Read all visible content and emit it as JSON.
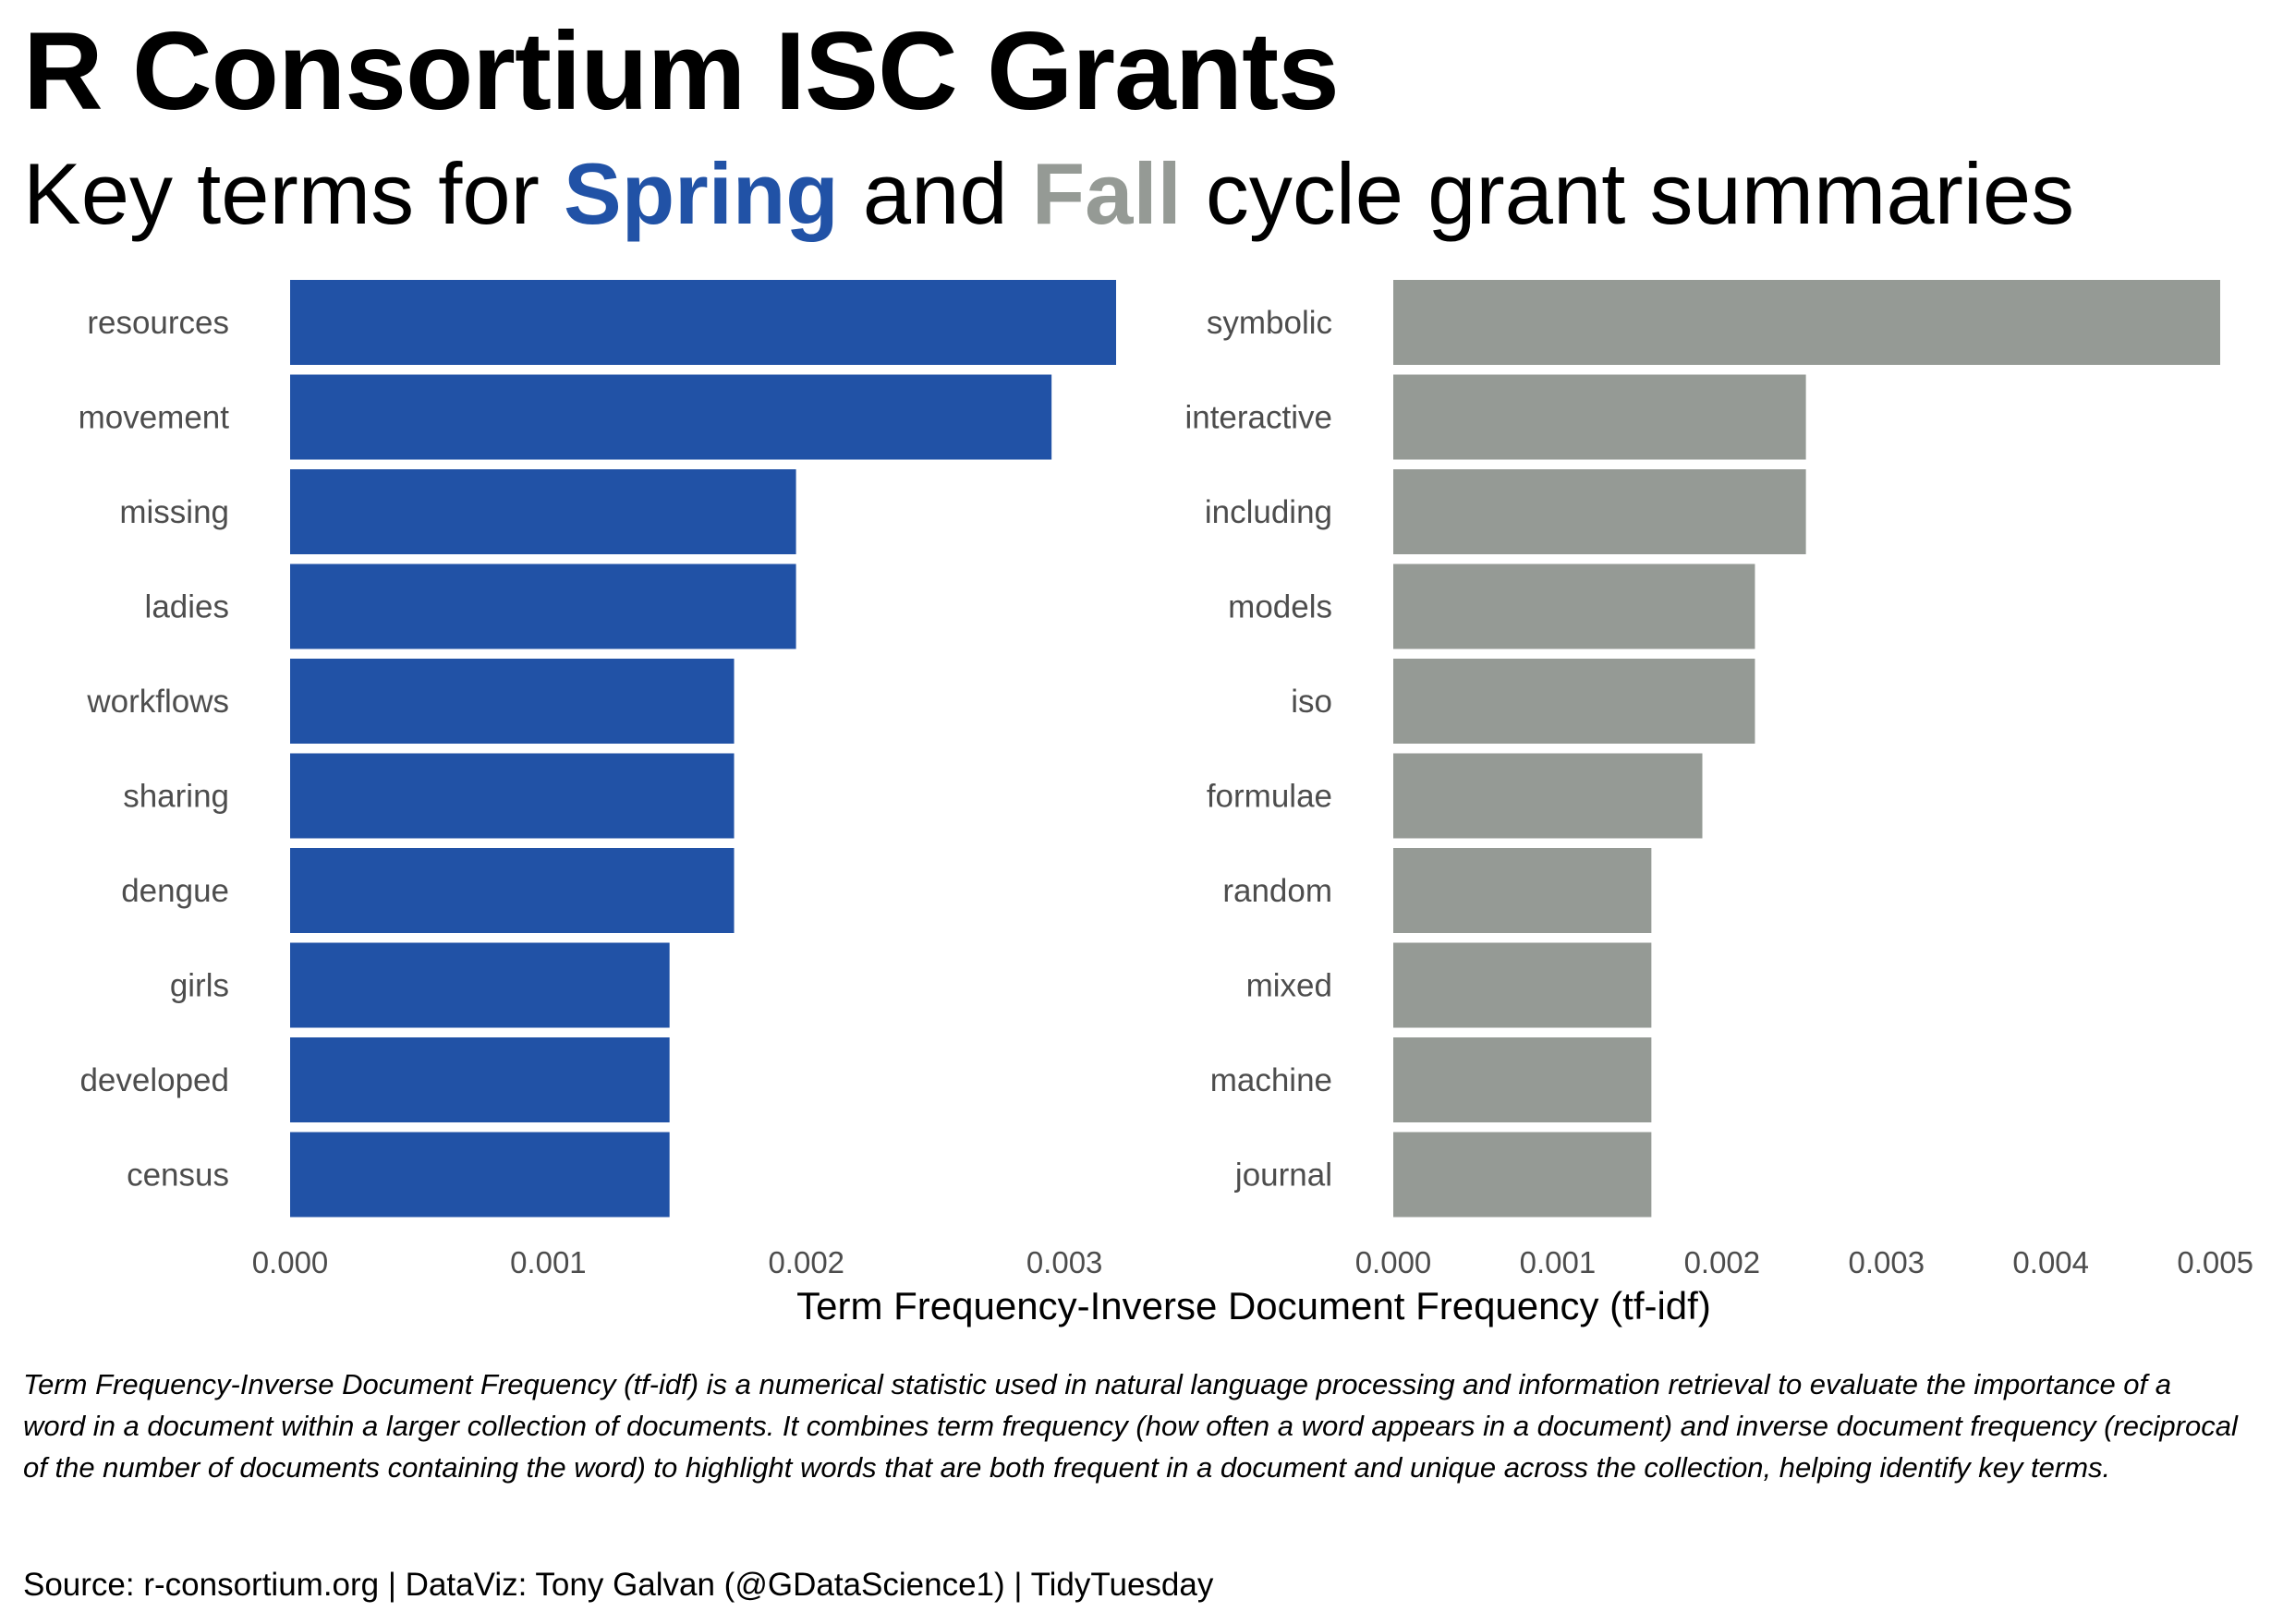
{
  "title": "R Consortium ISC Grants",
  "subtitle": {
    "prefix": "Key terms for ",
    "spring": "Spring",
    "middle": " and ",
    "fall": "Fall",
    "suffix": " cycle grant summaries"
  },
  "colors": {
    "spring": "#2152A6",
    "fall": "#959A95",
    "text": "#000000",
    "axis_text": "#4D4D4D",
    "background": "#FFFFFF"
  },
  "chart_data": [
    {
      "type": "bar",
      "orientation": "horizontal",
      "panel": "Spring",
      "categories": [
        "resources",
        "movement",
        "missing",
        "ladies",
        "workflows",
        "sharing",
        "dengue",
        "girls",
        "developed",
        "census"
      ],
      "values": [
        0.0032,
        0.00295,
        0.00196,
        0.00196,
        0.00172,
        0.00172,
        0.00172,
        0.00147,
        0.00147,
        0.00147
      ],
      "xlim": [
        0,
        0.0032
      ],
      "ticks": [
        "0.000",
        "0.001",
        "0.002",
        "0.003"
      ],
      "tick_values": [
        0,
        0.001,
        0.002,
        0.003
      ],
      "grid": false
    },
    {
      "type": "bar",
      "orientation": "horizontal",
      "panel": "Fall",
      "categories": [
        "symbolic",
        "interactive",
        "including",
        "models",
        "iso",
        "formulae",
        "random",
        "mixed",
        "machine",
        "journal"
      ],
      "values": [
        0.00503,
        0.00251,
        0.00251,
        0.0022,
        0.0022,
        0.00188,
        0.00157,
        0.00157,
        0.00157,
        0.00157
      ],
      "xlim": [
        0,
        0.00503
      ],
      "ticks": [
        "0.000",
        "0.001",
        "0.002",
        "0.003",
        "0.004",
        "0.005"
      ],
      "tick_values": [
        0,
        0.001,
        0.002,
        0.003,
        0.004,
        0.005
      ],
      "grid": false
    }
  ],
  "xlabel": "Term Frequency-Inverse Document Frequency (tf-idf)",
  "note": "Term Frequency-Inverse Document Frequency (tf-idf) is a numerical statistic used in natural language processing and information retrieval to evaluate the importance of a word in a document within a larger collection of documents. It combines term frequency (how often a word appears in a document) and inverse document frequency (reciprocal of the number of documents containing the word) to highlight words that are both frequent in a document and unique across the collection, helping identify key terms.",
  "source": "Source: r-consortium.org | DataViz: Tony Galvan (@GDataScience1) | TidyTuesday"
}
